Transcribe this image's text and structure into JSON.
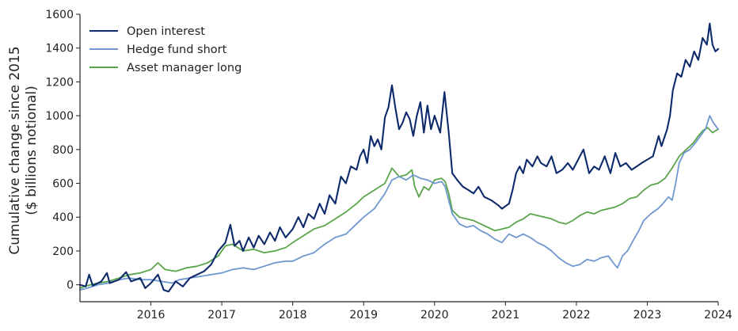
{
  "chart_data": {
    "type": "line",
    "title": "",
    "xlabel": "",
    "ylabel": [
      "Cumulative change since 2015",
      "($ billions notional)"
    ],
    "xlim": [
      2015.0,
      2024.0
    ],
    "ylim": [
      -100,
      1600
    ],
    "xticks": [
      2016,
      2017,
      2018,
      2019,
      2020,
      2021,
      2022,
      2023,
      2024
    ],
    "xtick_labels": [
      "2016",
      "2017",
      "2018",
      "2019",
      "2020",
      "2021",
      "2022",
      "2023",
      "2024"
    ],
    "yticks": [
      0,
      200,
      400,
      600,
      800,
      1000,
      1200,
      1400,
      1600
    ],
    "ytick_labels": [
      "0",
      "200",
      "400",
      "600",
      "800",
      "1000",
      "1200",
      "1400",
      "1600"
    ],
    "grid": false,
    "legend_position": "top-left",
    "series": [
      {
        "name": "Open interest",
        "color": "#0d2a6b",
        "points": [
          [
            2015.0,
            0
          ],
          [
            2015.08,
            -10
          ],
          [
            2015.13,
            60
          ],
          [
            2015.18,
            -5
          ],
          [
            2015.3,
            20
          ],
          [
            2015.38,
            70
          ],
          [
            2015.42,
            10
          ],
          [
            2015.55,
            30
          ],
          [
            2015.65,
            75
          ],
          [
            2015.72,
            20
          ],
          [
            2015.85,
            40
          ],
          [
            2015.92,
            -20
          ],
          [
            2016.0,
            10
          ],
          [
            2016.1,
            60
          ],
          [
            2016.18,
            -30
          ],
          [
            2016.25,
            -40
          ],
          [
            2016.35,
            20
          ],
          [
            2016.45,
            -10
          ],
          [
            2016.55,
            40
          ],
          [
            2016.65,
            60
          ],
          [
            2016.75,
            80
          ],
          [
            2016.85,
            120
          ],
          [
            2016.95,
            200
          ],
          [
            2017.05,
            250
          ],
          [
            2017.12,
            355
          ],
          [
            2017.18,
            230
          ],
          [
            2017.25,
            260
          ],
          [
            2017.3,
            200
          ],
          [
            2017.38,
            280
          ],
          [
            2017.45,
            220
          ],
          [
            2017.52,
            290
          ],
          [
            2017.6,
            240
          ],
          [
            2017.68,
            310
          ],
          [
            2017.75,
            260
          ],
          [
            2017.82,
            340
          ],
          [
            2017.9,
            280
          ],
          [
            2018.0,
            330
          ],
          [
            2018.08,
            400
          ],
          [
            2018.15,
            340
          ],
          [
            2018.22,
            420
          ],
          [
            2018.3,
            390
          ],
          [
            2018.38,
            480
          ],
          [
            2018.45,
            420
          ],
          [
            2018.52,
            530
          ],
          [
            2018.6,
            480
          ],
          [
            2018.68,
            640
          ],
          [
            2018.75,
            600
          ],
          [
            2018.82,
            700
          ],
          [
            2018.9,
            680
          ],
          [
            2018.95,
            760
          ],
          [
            2019.0,
            800
          ],
          [
            2019.05,
            720
          ],
          [
            2019.1,
            880
          ],
          [
            2019.15,
            820
          ],
          [
            2019.2,
            860
          ],
          [
            2019.25,
            800
          ],
          [
            2019.3,
            990
          ],
          [
            2019.35,
            1050
          ],
          [
            2019.4,
            1180
          ],
          [
            2019.45,
            1040
          ],
          [
            2019.5,
            920
          ],
          [
            2019.55,
            960
          ],
          [
            2019.6,
            1020
          ],
          [
            2019.65,
            980
          ],
          [
            2019.7,
            880
          ],
          [
            2019.75,
            1000
          ],
          [
            2019.8,
            1080
          ],
          [
            2019.85,
            900
          ],
          [
            2019.9,
            1060
          ],
          [
            2019.95,
            920
          ],
          [
            2020.0,
            1000
          ],
          [
            2020.08,
            900
          ],
          [
            2020.14,
            1140
          ],
          [
            2020.2,
            900
          ],
          [
            2020.25,
            660
          ],
          [
            2020.32,
            620
          ],
          [
            2020.4,
            580
          ],
          [
            2020.48,
            560
          ],
          [
            2020.55,
            540
          ],
          [
            2020.62,
            580
          ],
          [
            2020.7,
            520
          ],
          [
            2020.8,
            500
          ],
          [
            2020.9,
            470
          ],
          [
            2020.95,
            450
          ],
          [
            2021.05,
            480
          ],
          [
            2021.1,
            560
          ],
          [
            2021.15,
            660
          ],
          [
            2021.2,
            700
          ],
          [
            2021.25,
            660
          ],
          [
            2021.3,
            740
          ],
          [
            2021.38,
            700
          ],
          [
            2021.45,
            760
          ],
          [
            2021.5,
            720
          ],
          [
            2021.58,
            700
          ],
          [
            2021.65,
            760
          ],
          [
            2021.72,
            660
          ],
          [
            2021.8,
            680
          ],
          [
            2021.88,
            720
          ],
          [
            2021.95,
            680
          ],
          [
            2022.0,
            720
          ],
          [
            2022.1,
            800
          ],
          [
            2022.18,
            660
          ],
          [
            2022.25,
            700
          ],
          [
            2022.32,
            680
          ],
          [
            2022.4,
            760
          ],
          [
            2022.48,
            660
          ],
          [
            2022.55,
            780
          ],
          [
            2022.62,
            700
          ],
          [
            2022.7,
            720
          ],
          [
            2022.78,
            680
          ],
          [
            2022.85,
            700
          ],
          [
            2022.92,
            720
          ],
          [
            2023.0,
            740
          ],
          [
            2023.08,
            760
          ],
          [
            2023.12,
            820
          ],
          [
            2023.16,
            880
          ],
          [
            2023.2,
            820
          ],
          [
            2023.28,
            920
          ],
          [
            2023.32,
            1000
          ],
          [
            2023.36,
            1150
          ],
          [
            2023.42,
            1250
          ],
          [
            2023.48,
            1230
          ],
          [
            2023.54,
            1330
          ],
          [
            2023.6,
            1290
          ],
          [
            2023.66,
            1380
          ],
          [
            2023.72,
            1330
          ],
          [
            2023.78,
            1460
          ],
          [
            2023.84,
            1420
          ],
          [
            2023.88,
            1545
          ],
          [
            2023.92,
            1420
          ],
          [
            2023.96,
            1380
          ],
          [
            2024.0,
            1395
          ]
        ]
      },
      {
        "name": "Hedge fund short",
        "color": "#6f98d0",
        "points": [
          [
            2015.0,
            -30
          ],
          [
            2015.1,
            -20
          ],
          [
            2015.25,
            0
          ],
          [
            2015.4,
            10
          ],
          [
            2015.55,
            30
          ],
          [
            2015.7,
            40
          ],
          [
            2015.85,
            30
          ],
          [
            2016.0,
            30
          ],
          [
            2016.15,
            20
          ],
          [
            2016.3,
            10
          ],
          [
            2016.4,
            30
          ],
          [
            2016.55,
            40
          ],
          [
            2016.7,
            50
          ],
          [
            2016.85,
            60
          ],
          [
            2017.0,
            70
          ],
          [
            2017.15,
            90
          ],
          [
            2017.3,
            100
          ],
          [
            2017.45,
            90
          ],
          [
            2017.6,
            110
          ],
          [
            2017.75,
            130
          ],
          [
            2017.9,
            140
          ],
          [
            2018.0,
            140
          ],
          [
            2018.15,
            170
          ],
          [
            2018.3,
            190
          ],
          [
            2018.45,
            240
          ],
          [
            2018.6,
            280
          ],
          [
            2018.75,
            300
          ],
          [
            2018.9,
            360
          ],
          [
            2019.0,
            400
          ],
          [
            2019.15,
            450
          ],
          [
            2019.3,
            540
          ],
          [
            2019.4,
            620
          ],
          [
            2019.5,
            640
          ],
          [
            2019.6,
            620
          ],
          [
            2019.7,
            650
          ],
          [
            2019.8,
            630
          ],
          [
            2019.9,
            620
          ],
          [
            2020.0,
            600
          ],
          [
            2020.1,
            610
          ],
          [
            2020.15,
            580
          ],
          [
            2020.2,
            500
          ],
          [
            2020.25,
            420
          ],
          [
            2020.35,
            360
          ],
          [
            2020.45,
            340
          ],
          [
            2020.55,
            350
          ],
          [
            2020.65,
            320
          ],
          [
            2020.75,
            300
          ],
          [
            2020.85,
            270
          ],
          [
            2020.95,
            250
          ],
          [
            2021.05,
            300
          ],
          [
            2021.15,
            280
          ],
          [
            2021.25,
            300
          ],
          [
            2021.35,
            280
          ],
          [
            2021.45,
            250
          ],
          [
            2021.55,
            230
          ],
          [
            2021.65,
            200
          ],
          [
            2021.75,
            160
          ],
          [
            2021.85,
            130
          ],
          [
            2021.95,
            110
          ],
          [
            2022.05,
            120
          ],
          [
            2022.15,
            150
          ],
          [
            2022.25,
            140
          ],
          [
            2022.35,
            160
          ],
          [
            2022.45,
            170
          ],
          [
            2022.52,
            130
          ],
          [
            2022.58,
            100
          ],
          [
            2022.65,
            170
          ],
          [
            2022.72,
            200
          ],
          [
            2022.8,
            260
          ],
          [
            2022.88,
            320
          ],
          [
            2022.95,
            380
          ],
          [
            2023.05,
            420
          ],
          [
            2023.15,
            450
          ],
          [
            2023.22,
            480
          ],
          [
            2023.3,
            520
          ],
          [
            2023.35,
            500
          ],
          [
            2023.4,
            600
          ],
          [
            2023.45,
            720
          ],
          [
            2023.52,
            780
          ],
          [
            2023.6,
            800
          ],
          [
            2023.68,
            840
          ],
          [
            2023.75,
            880
          ],
          [
            2023.82,
            920
          ],
          [
            2023.88,
            1000
          ],
          [
            2023.93,
            960
          ],
          [
            2024.0,
            920
          ]
        ]
      },
      {
        "name": "Asset manager long",
        "color": "#5aa54b",
        "points": [
          [
            2015.0,
            -20
          ],
          [
            2015.1,
            -5
          ],
          [
            2015.25,
            10
          ],
          [
            2015.4,
            20
          ],
          [
            2015.55,
            40
          ],
          [
            2015.7,
            60
          ],
          [
            2015.85,
            70
          ],
          [
            2016.0,
            90
          ],
          [
            2016.1,
            130
          ],
          [
            2016.2,
            90
          ],
          [
            2016.35,
            80
          ],
          [
            2016.5,
            100
          ],
          [
            2016.65,
            110
          ],
          [
            2016.8,
            130
          ],
          [
            2016.95,
            170
          ],
          [
            2017.05,
            230
          ],
          [
            2017.15,
            240
          ],
          [
            2017.3,
            200
          ],
          [
            2017.45,
            210
          ],
          [
            2017.6,
            190
          ],
          [
            2017.75,
            200
          ],
          [
            2017.9,
            220
          ],
          [
            2018.0,
            250
          ],
          [
            2018.15,
            290
          ],
          [
            2018.3,
            330
          ],
          [
            2018.45,
            350
          ],
          [
            2018.6,
            390
          ],
          [
            2018.75,
            430
          ],
          [
            2018.9,
            480
          ],
          [
            2019.0,
            520
          ],
          [
            2019.15,
            560
          ],
          [
            2019.3,
            600
          ],
          [
            2019.4,
            690
          ],
          [
            2019.5,
            640
          ],
          [
            2019.6,
            650
          ],
          [
            2019.68,
            680
          ],
          [
            2019.72,
            580
          ],
          [
            2019.78,
            520
          ],
          [
            2019.85,
            580
          ],
          [
            2019.92,
            560
          ],
          [
            2020.0,
            620
          ],
          [
            2020.1,
            630
          ],
          [
            2020.15,
            610
          ],
          [
            2020.2,
            540
          ],
          [
            2020.25,
            440
          ],
          [
            2020.35,
            400
          ],
          [
            2020.45,
            390
          ],
          [
            2020.55,
            380
          ],
          [
            2020.65,
            360
          ],
          [
            2020.75,
            340
          ],
          [
            2020.85,
            320
          ],
          [
            2020.95,
            330
          ],
          [
            2021.05,
            340
          ],
          [
            2021.15,
            370
          ],
          [
            2021.25,
            390
          ],
          [
            2021.35,
            420
          ],
          [
            2021.45,
            410
          ],
          [
            2021.55,
            400
          ],
          [
            2021.65,
            390
          ],
          [
            2021.75,
            370
          ],
          [
            2021.85,
            360
          ],
          [
            2021.95,
            380
          ],
          [
            2022.05,
            410
          ],
          [
            2022.15,
            430
          ],
          [
            2022.25,
            420
          ],
          [
            2022.35,
            440
          ],
          [
            2022.45,
            450
          ],
          [
            2022.55,
            460
          ],
          [
            2022.65,
            480
          ],
          [
            2022.75,
            510
          ],
          [
            2022.85,
            520
          ],
          [
            2022.95,
            560
          ],
          [
            2023.05,
            590
          ],
          [
            2023.15,
            600
          ],
          [
            2023.25,
            630
          ],
          [
            2023.35,
            690
          ],
          [
            2023.45,
            760
          ],
          [
            2023.55,
            800
          ],
          [
            2023.65,
            840
          ],
          [
            2023.72,
            880
          ],
          [
            2023.78,
            910
          ],
          [
            2023.85,
            930
          ],
          [
            2023.92,
            900
          ],
          [
            2024.0,
            920
          ]
        ]
      }
    ]
  }
}
